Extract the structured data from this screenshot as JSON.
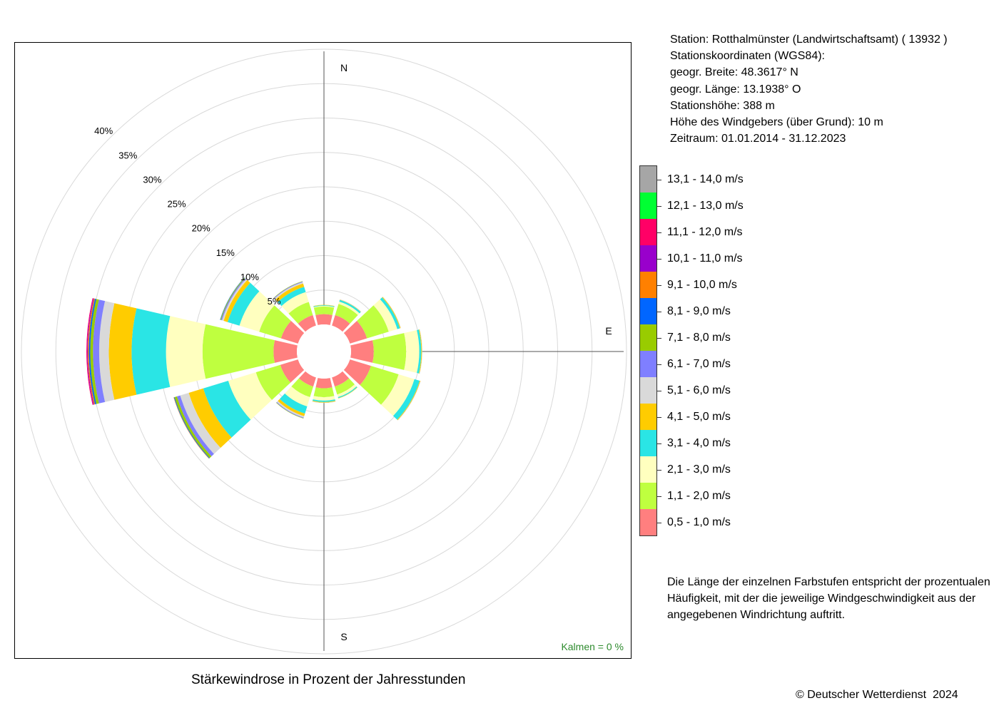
{
  "chart_data": {
    "type": "windrose",
    "title": "Stärkewindrose in Prozent der Jahresstunden",
    "calm_label": "Kalmen  =  0 %",
    "compass_labels": [
      "N",
      "E",
      "S"
    ],
    "radial_ticks": [
      5,
      10,
      15,
      20,
      25,
      30,
      35,
      40
    ],
    "radial_tick_labels": [
      "5%",
      "10%",
      "15%",
      "20%",
      "25%",
      "30%",
      "35%",
      "40%"
    ],
    "radial_max": 40,
    "speed_classes": [
      {
        "label": "0,5 - 1,0 m/s",
        "color": "#ff7f7f"
      },
      {
        "label": "1,1 - 2,0 m/s",
        "color": "#bfff3f"
      },
      {
        "label": "2,1 - 3,0 m/s",
        "color": "#ffffbf"
      },
      {
        "label": "3,1 - 4,0 m/s",
        "color": "#2ae5e5"
      },
      {
        "label": "4,1 - 5,0 m/s",
        "color": "#ffcc00"
      },
      {
        "label": "5,1 - 6,0 m/s",
        "color": "#d9d9d9"
      },
      {
        "label": "6,1 - 7,0 m/s",
        "color": "#7f7fff"
      },
      {
        "label": "7,1 - 8,0 m/s",
        "color": "#99cc00"
      },
      {
        "label": "8,1 - 9,0 m/s",
        "color": "#0066ff"
      },
      {
        "label": "9,1 - 10,0 m/s",
        "color": "#ff8000"
      },
      {
        "label": "10,1 - 11,0 m/s",
        "color": "#9900cc"
      },
      {
        "label": "11,1 - 12,0 m/s",
        "color": "#ff0066"
      },
      {
        "label": "12,1 - 13,0 m/s",
        "color": "#00ff33"
      },
      {
        "label": "13,1 - 14,0 m/s",
        "color": "#a6a6a6"
      }
    ],
    "directions": [
      0,
      30,
      60,
      90,
      120,
      150,
      180,
      210,
      240,
      270,
      300,
      330
    ],
    "direction_values": [
      [
        1.5,
        1.1,
        0.1,
        0.1,
        0.05,
        0.0,
        0,
        0,
        0,
        0,
        0,
        0,
        0,
        0
      ],
      [
        1.6,
        1.7,
        0.35,
        0.25,
        0.05,
        0.05,
        0,
        0,
        0,
        0,
        0,
        0,
        0,
        0
      ],
      [
        2.6,
        3.3,
        1.3,
        0.4,
        0.1,
        0.05,
        0,
        0,
        0,
        0,
        0,
        0,
        0,
        0
      ],
      [
        3.3,
        4.7,
        1.9,
        0.3,
        0.1,
        0.05,
        0,
        0,
        0,
        0,
        0,
        0,
        0,
        0
      ],
      [
        3.2,
        4.2,
        2.4,
        0.8,
        0.1,
        0.05,
        0,
        0,
        0,
        0,
        0,
        0,
        0,
        0
      ],
      [
        1.4,
        1.2,
        0.4,
        0.15,
        0.05,
        0,
        0,
        0,
        0,
        0,
        0,
        0,
        0,
        0
      ],
      [
        1.4,
        1.3,
        0.5,
        0.2,
        0.1,
        0.05,
        0,
        0,
        0,
        0,
        0,
        0,
        0,
        0
      ],
      [
        1.4,
        1.6,
        1.4,
        1.1,
        0.4,
        0.2,
        0.1,
        0.05,
        0,
        0,
        0,
        0,
        0,
        0
      ],
      [
        2.7,
        3.7,
        4.2,
        3.8,
        2.2,
        1.3,
        0.5,
        0.35,
        0.1,
        0.05,
        0,
        0,
        0,
        0
      ],
      [
        3.4,
        10.3,
        5.3,
        5.0,
        3.3,
        1.4,
        0.9,
        0.4,
        0.2,
        0.15,
        0.1,
        0.1,
        0,
        0
      ],
      [
        2.6,
        3.3,
        3.0,
        1.8,
        0.6,
        0.25,
        0.15,
        0.1,
        0.05,
        0,
        0,
        0,
        0,
        0
      ],
      [
        1.6,
        2.0,
        1.5,
        0.8,
        0.5,
        0.2,
        0.1,
        0.05,
        0,
        0,
        0,
        0,
        0,
        0
      ]
    ]
  },
  "station": {
    "line1": "Station:  Rotthalmünster (Landwirtschaftsamt)  ( 13932 )",
    "line2": "Stationskoordinaten (WGS84):",
    "line3": "geogr. Breite: 48.3617° N",
    "line4": "geogr. Länge: 13.1938° O",
    "line5": "Stationshöhe: 388 m",
    "line6": "Höhe des Windgebers (über Grund): 10 m",
    "line7": "Zeitraum: 01.01.2014 - 31.12.2023"
  },
  "note": "Die Länge der einzelnen Farbstufen entspricht der prozentualen Häufigkeit, mit der die jeweilige Windgeschwindigkeit aus der angegebenen Windrichtung auftritt.",
  "copyright": "© Deutscher Wetterdienst  2024"
}
